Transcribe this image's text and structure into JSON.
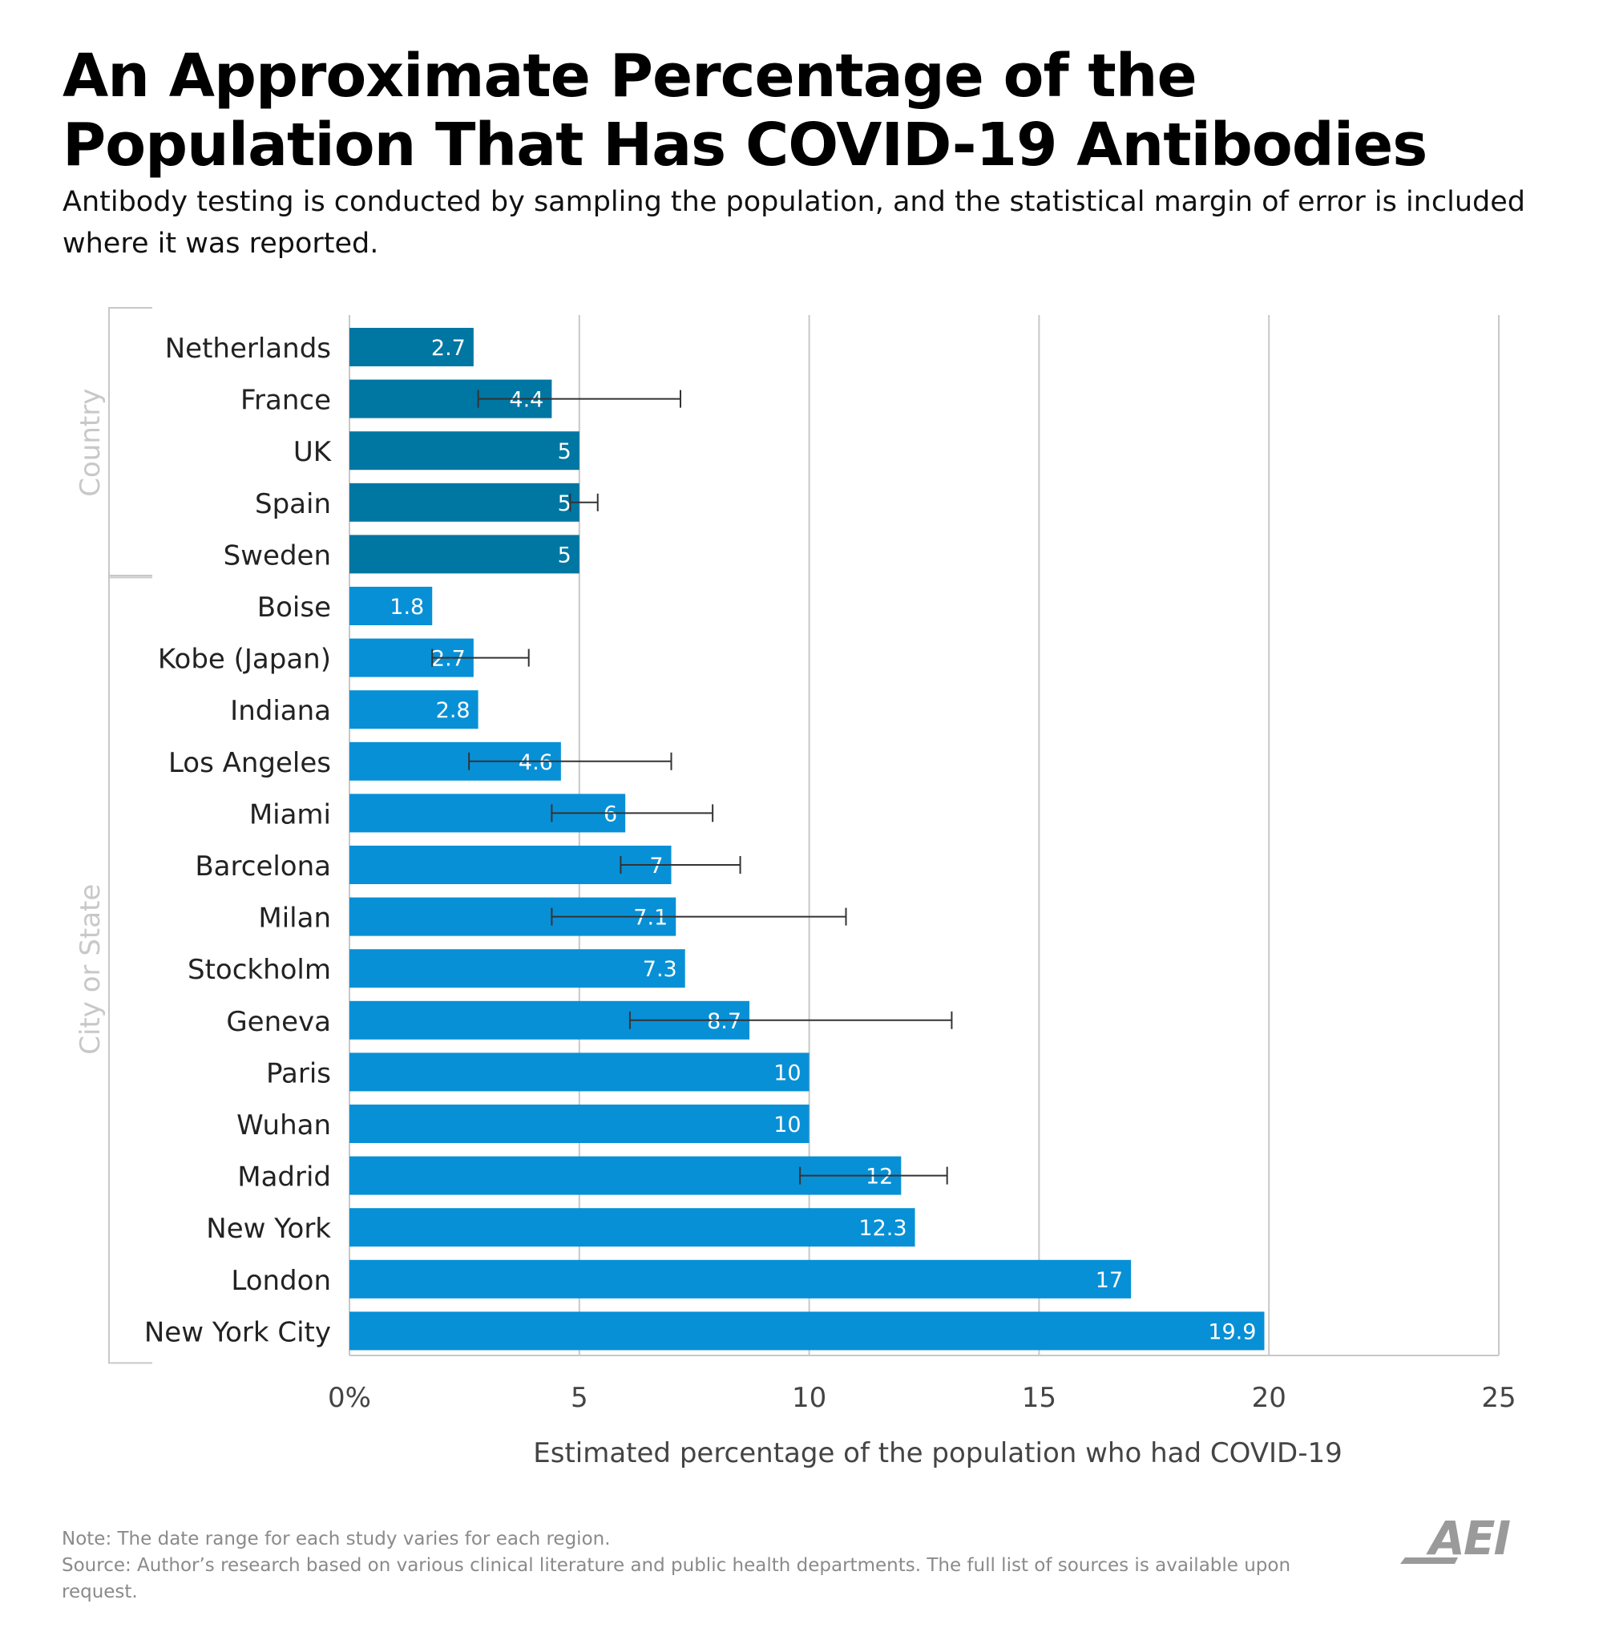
{
  "title": "An Approximate Percentage of the Population That Has COVID-19 Antibodies",
  "subtitle": "Antibody testing is conducted by sampling the population, and the statistical margin of error is included where it was reported.",
  "footer": {
    "note": "Note: The date range for each study varies for each region.",
    "source": "Source: Author’s research based on various clinical literature and public health departments. The full list of sources is available upon request."
  },
  "logo": {
    "text": "AEI"
  },
  "colors": {
    "country_bar": "#0076a3",
    "city_bar": "#0890d6",
    "error_bar": "#333333",
    "grid": "#c8c8c8",
    "group_label": "#c8c8c8",
    "axis_text": "#444444"
  },
  "chart_data": {
    "type": "bar",
    "orientation": "horizontal",
    "xlabel": "Estimated percentage of the population who had COVID-19",
    "xlim": [
      0,
      25
    ],
    "xticks": [
      {
        "value": 0,
        "label": "0%"
      },
      {
        "value": 5,
        "label": "5"
      },
      {
        "value": 10,
        "label": "10"
      },
      {
        "value": 15,
        "label": "15"
      },
      {
        "value": 20,
        "label": "20"
      },
      {
        "value": 25,
        "label": "25"
      }
    ],
    "grid": true,
    "groups": [
      {
        "name": "Country",
        "color": "#0076a3",
        "items": [
          {
            "label": "Netherlands",
            "value": 2.7,
            "value_label": "2.7"
          },
          {
            "label": "France",
            "value": 4.4,
            "value_label": "4.4",
            "error": [
              2.8,
              7.2
            ]
          },
          {
            "label": "UK",
            "value": 5,
            "value_label": "5"
          },
          {
            "label": "Spain",
            "value": 5,
            "value_label": "5",
            "error": [
              4.8,
              5.4
            ]
          },
          {
            "label": "Sweden",
            "value": 5,
            "value_label": "5"
          }
        ]
      },
      {
        "name": "City or State",
        "color": "#0890d6",
        "items": [
          {
            "label": "Boise",
            "value": 1.8,
            "value_label": "1.8"
          },
          {
            "label": "Kobe (Japan)",
            "value": 2.7,
            "value_label": "2.7",
            "error": [
              1.8,
              3.9
            ]
          },
          {
            "label": "Indiana",
            "value": 2.8,
            "value_label": "2.8"
          },
          {
            "label": "Los Angeles",
            "value": 4.6,
            "value_label": "4.6",
            "error": [
              2.6,
              7.0
            ]
          },
          {
            "label": "Miami",
            "value": 6,
            "value_label": "6",
            "error": [
              4.4,
              7.9
            ]
          },
          {
            "label": "Barcelona",
            "value": 7,
            "value_label": "7",
            "error": [
              5.9,
              8.5
            ]
          },
          {
            "label": "Milan",
            "value": 7.1,
            "value_label": "7.1",
            "error": [
              4.4,
              10.8
            ]
          },
          {
            "label": "Stockholm",
            "value": 7.3,
            "value_label": "7.3"
          },
          {
            "label": "Geneva",
            "value": 8.7,
            "value_label": "8.7",
            "error": [
              6.1,
              13.1
            ]
          },
          {
            "label": "Paris",
            "value": 10,
            "value_label": "10"
          },
          {
            "label": "Wuhan",
            "value": 10,
            "value_label": "10"
          },
          {
            "label": "Madrid",
            "value": 12,
            "value_label": "12",
            "error": [
              9.8,
              13.0
            ]
          },
          {
            "label": "New York",
            "value": 12.3,
            "value_label": "12.3"
          },
          {
            "label": "London",
            "value": 17,
            "value_label": "17"
          },
          {
            "label": "New York City",
            "value": 19.9,
            "value_label": "19.9"
          }
        ]
      }
    ]
  }
}
